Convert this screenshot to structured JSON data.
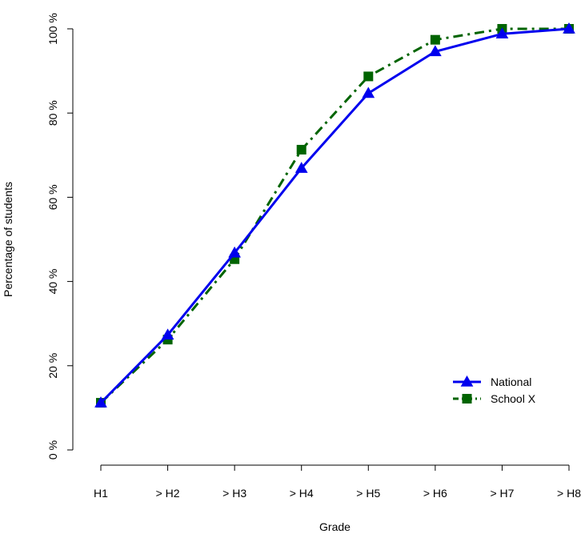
{
  "chart_data": {
    "type": "line",
    "categories": [
      "H1",
      "> H2",
      "> H3",
      "> H4",
      "> H5",
      "> H6",
      "> H7",
      "> H8"
    ],
    "xlabel": "Grade",
    "ylabel": "Percentage of students",
    "ylim": [
      0,
      100
    ],
    "yticks": [
      0,
      20,
      40,
      60,
      80,
      100
    ],
    "ytick_labels": [
      "0 %",
      "20 %",
      "40 %",
      "60 %",
      "80 %",
      "100 %"
    ],
    "grid": false,
    "legend_position": "bottom-right",
    "series": [
      {
        "name": "National",
        "color": "#0000ee",
        "line_style": "solid",
        "marker": "triangle",
        "values": [
          11.2,
          27.3,
          46.8,
          66.9,
          84.7,
          94.6,
          98.8,
          100
        ]
      },
      {
        "name": "School X",
        "color": "#006400",
        "line_style": "dash-dot",
        "marker": "square",
        "values": [
          11.2,
          26.2,
          45.3,
          71.3,
          88.7,
          97.4,
          100,
          100
        ]
      }
    ]
  }
}
